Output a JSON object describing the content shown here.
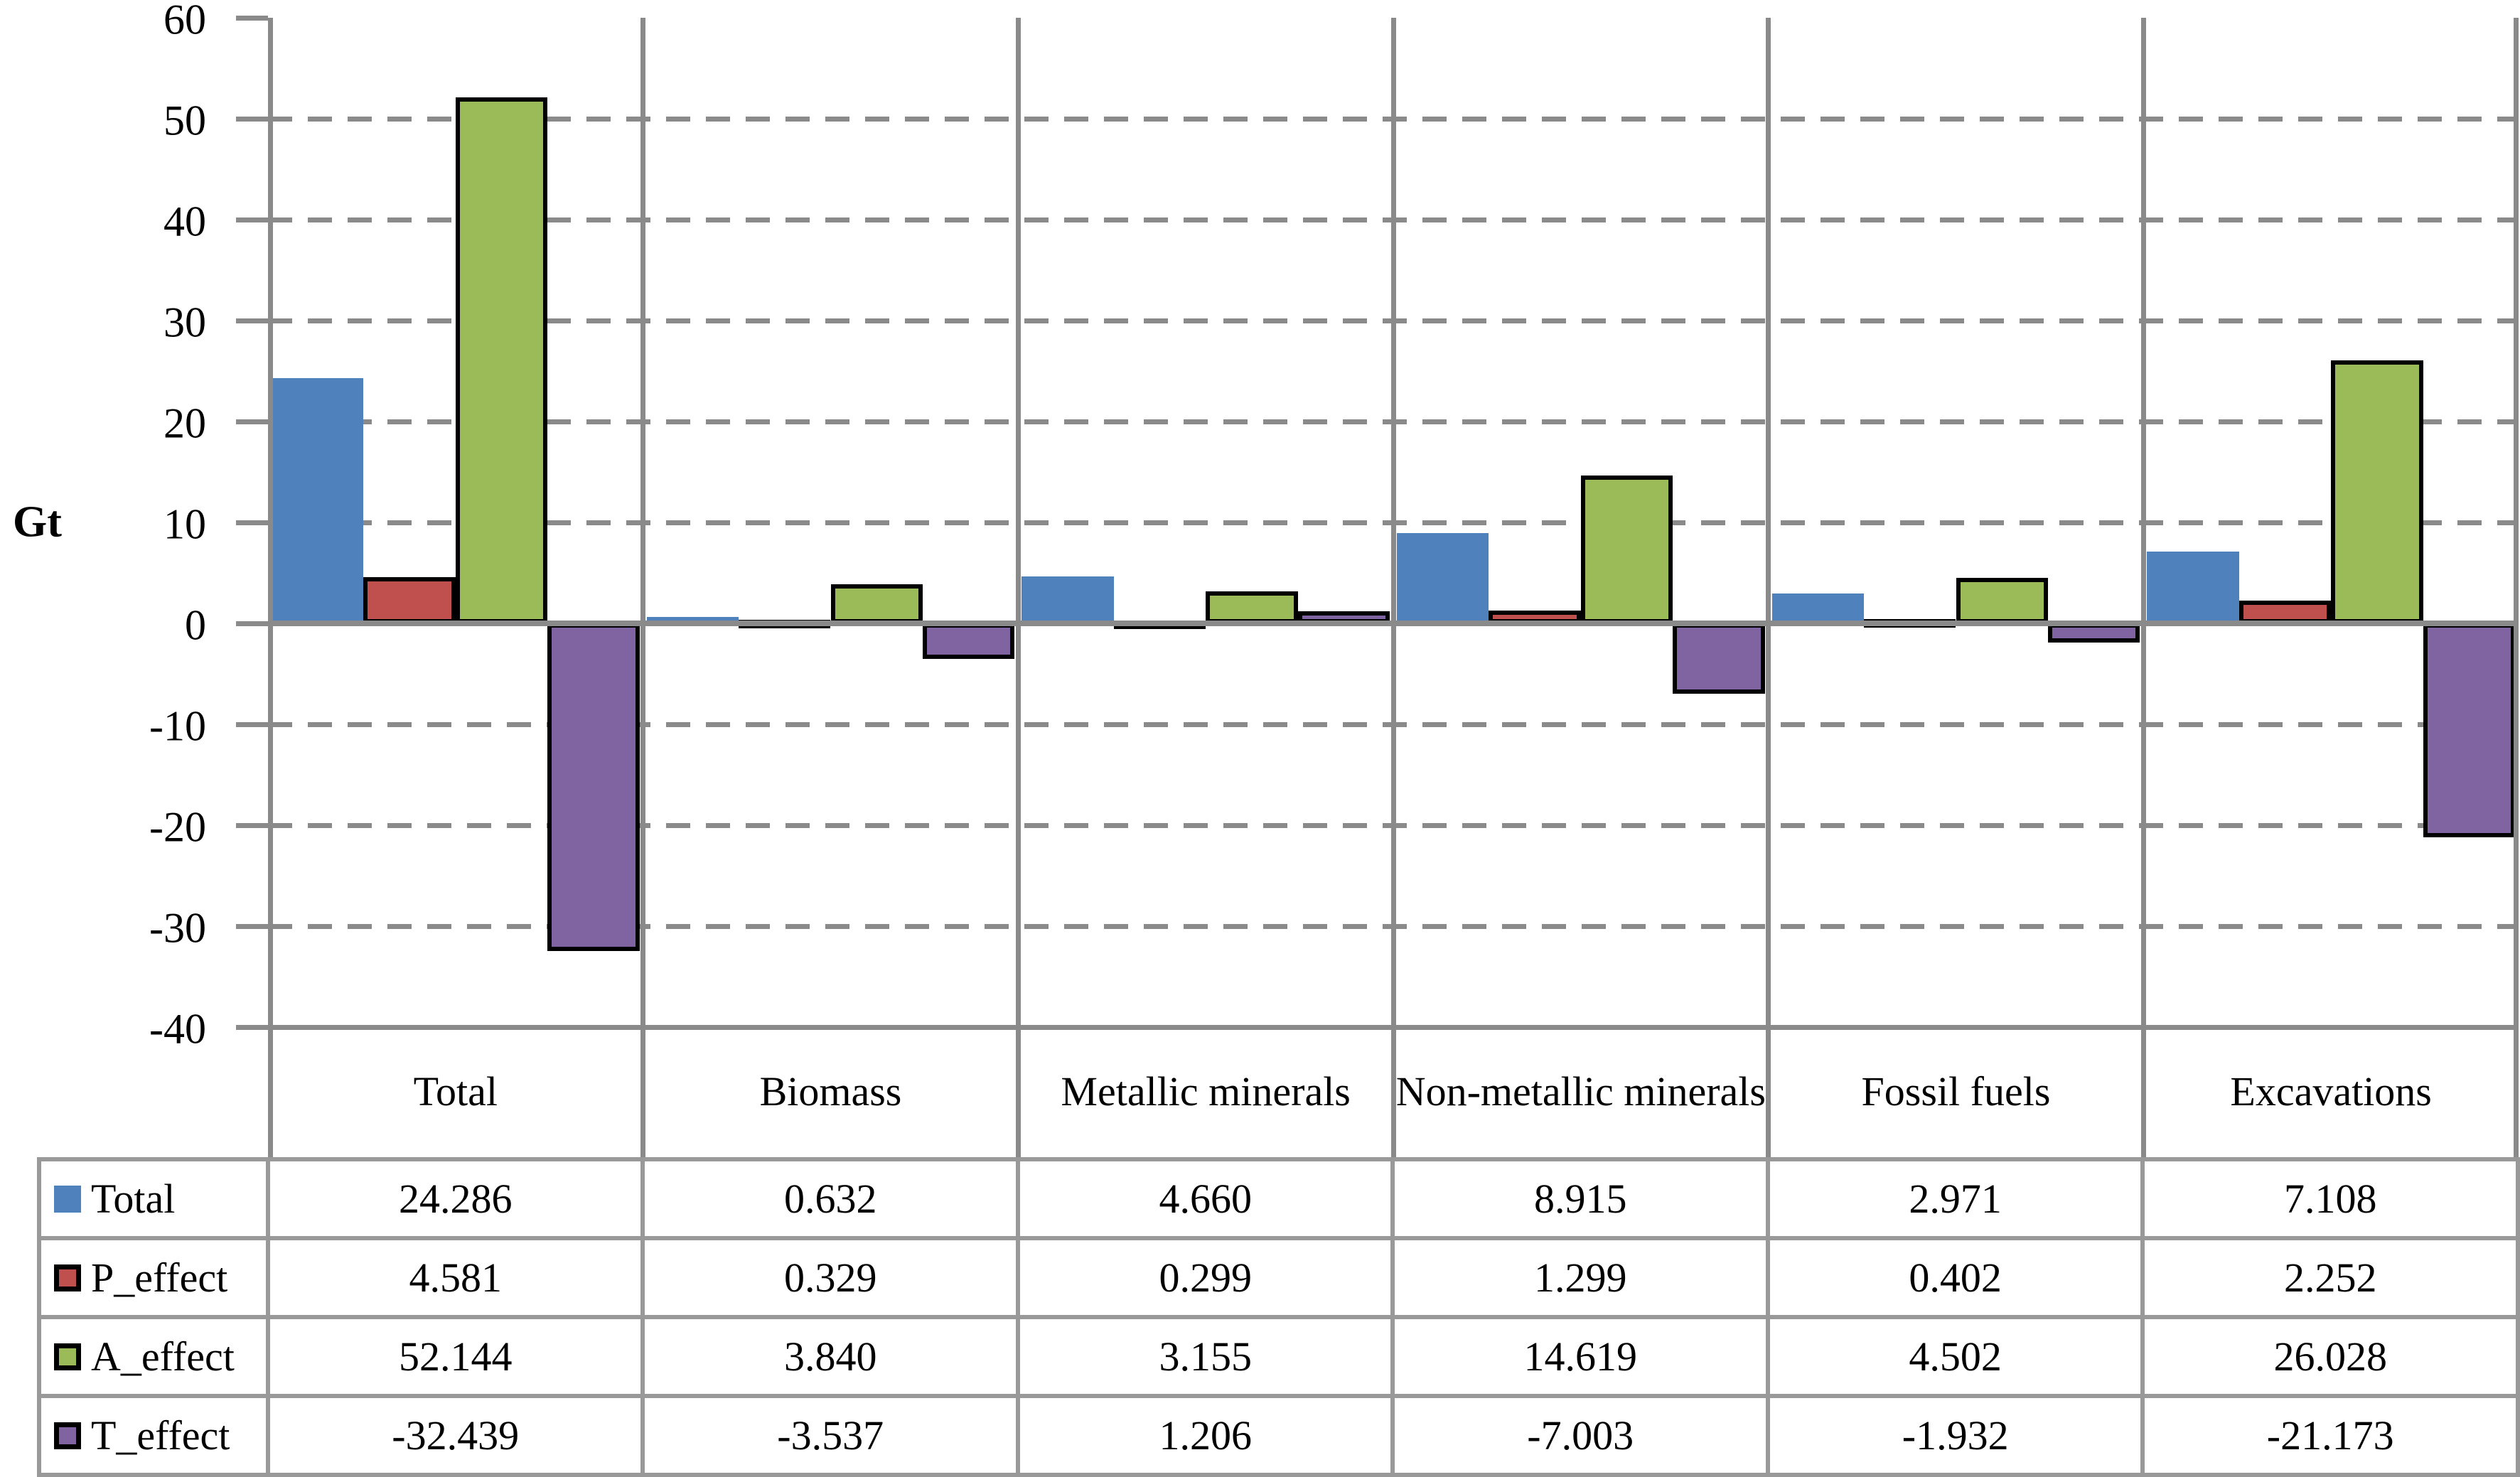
{
  "chart_data": {
    "type": "bar",
    "title": "",
    "y_axis_title": "Gt",
    "ylim": [
      -40,
      60
    ],
    "ytick_step": 10,
    "grid": "horizontal-dashed",
    "zero_line": "solid",
    "legend_position": "table-left",
    "categories": [
      "Total",
      "Biomass",
      "Metallic minerals",
      "Non-metallic minerals",
      "Fossil fuels",
      "Excavations"
    ],
    "series": [
      {
        "name": "Total",
        "color": "#4F81BD",
        "outline": false,
        "values": [
          24.286,
          0.632,
          4.66,
          8.915,
          2.971,
          7.108
        ]
      },
      {
        "name": "P_effect",
        "color": "#C0504D",
        "outline": true,
        "values": [
          4.581,
          0.329,
          0.299,
          1.299,
          0.402,
          2.252
        ]
      },
      {
        "name": "A_effect",
        "color": "#9BBB59",
        "outline": true,
        "values": [
          52.144,
          3.84,
          3.155,
          14.619,
          4.502,
          26.028
        ]
      },
      {
        "name": "T_effect",
        "color": "#8064A2",
        "outline": true,
        "values": [
          -32.439,
          -3.537,
          1.206,
          -7.003,
          -1.932,
          -21.173
        ]
      }
    ],
    "value_decimals": 3,
    "line_color": "#8a8a8a",
    "table_border_color": "#999999"
  }
}
